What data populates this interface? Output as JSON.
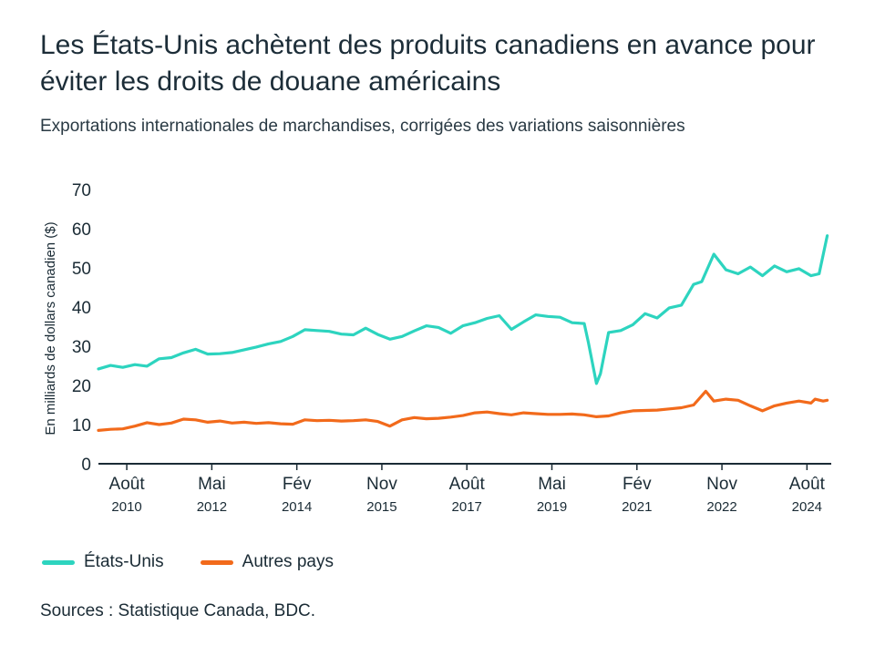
{
  "title": "Les États-Unis achètent des produits canadiens en avance pour éviter les droits de douane américains",
  "subtitle": "Exportations internationales de marchandises, corrigées des variations saisonnières",
  "source": "Sources : Statistique Canada, BDC.",
  "colors": {
    "us": "#2dd4bf",
    "other": "#f26a1b"
  },
  "chart_data": {
    "type": "line",
    "ylabel": "En milliards de dollars canadien ($)",
    "ylim": [
      0,
      70
    ],
    "yticks": [
      0,
      10,
      20,
      30,
      40,
      50,
      60,
      70
    ],
    "xlim": [
      "2010-01",
      "2025-02"
    ],
    "xticks": [
      {
        "month": "Août",
        "year": "2010",
        "date": "2010-08"
      },
      {
        "month": "Mai",
        "year": "2012",
        "date": "2012-05"
      },
      {
        "month": "Fév",
        "year": "2014",
        "date": "2014-02"
      },
      {
        "month": "Nov",
        "year": "2015",
        "date": "2015-11"
      },
      {
        "month": "Août",
        "year": "2017",
        "date": "2017-08"
      },
      {
        "month": "Mai",
        "year": "2019",
        "date": "2019-05"
      },
      {
        "month": "Fév",
        "year": "2021",
        "date": "2021-02"
      },
      {
        "month": "Nov",
        "year": "2022",
        "date": "2022-11"
      },
      {
        "month": "Août",
        "year": "2024",
        "date": "2024-08"
      }
    ],
    "grid": false,
    "legend": "bottom-left",
    "series": [
      {
        "name": "États-Unis",
        "x": [
          "2010-01",
          "2010-04",
          "2010-07",
          "2010-10",
          "2011-01",
          "2011-04",
          "2011-07",
          "2011-10",
          "2012-01",
          "2012-04",
          "2012-07",
          "2012-10",
          "2013-01",
          "2013-04",
          "2013-07",
          "2013-10",
          "2014-01",
          "2014-04",
          "2014-07",
          "2014-10",
          "2015-01",
          "2015-04",
          "2015-07",
          "2015-10",
          "2016-01",
          "2016-04",
          "2016-07",
          "2016-10",
          "2017-01",
          "2017-04",
          "2017-07",
          "2017-10",
          "2018-01",
          "2018-04",
          "2018-07",
          "2018-10",
          "2019-01",
          "2019-04",
          "2019-07",
          "2019-10",
          "2020-01",
          "2020-02",
          "2020-04",
          "2020-05",
          "2020-07",
          "2020-10",
          "2021-01",
          "2021-04",
          "2021-07",
          "2021-10",
          "2022-01",
          "2022-04",
          "2022-06",
          "2022-09",
          "2022-12",
          "2023-03",
          "2023-06",
          "2023-09",
          "2023-12",
          "2024-03",
          "2024-06",
          "2024-09",
          "2024-11",
          "2025-01"
        ],
        "values": [
          24.2,
          25.1,
          24.6,
          25.3,
          24.9,
          26.8,
          27.1,
          28.3,
          29.2,
          28.0,
          28.1,
          28.4,
          29.1,
          29.8,
          30.6,
          31.2,
          32.5,
          34.2,
          34.0,
          33.8,
          33.1,
          32.9,
          34.6,
          33.0,
          31.8,
          32.5,
          33.9,
          35.2,
          34.8,
          33.3,
          35.2,
          36.0,
          37.1,
          37.8,
          34.3,
          36.2,
          38.0,
          37.6,
          37.4,
          36.0,
          35.8,
          31.0,
          20.5,
          23.0,
          33.5,
          34.0,
          35.5,
          38.3,
          37.2,
          39.8,
          40.5,
          45.8,
          46.5,
          53.5,
          49.5,
          48.5,
          50.2,
          48.0,
          50.5,
          49.0,
          49.8,
          48.0,
          48.5,
          58.2
        ]
      },
      {
        "name": "Autres pays",
        "x": [
          "2010-01",
          "2010-04",
          "2010-07",
          "2010-10",
          "2011-01",
          "2011-04",
          "2011-07",
          "2011-10",
          "2012-01",
          "2012-04",
          "2012-07",
          "2012-10",
          "2013-01",
          "2013-04",
          "2013-07",
          "2013-10",
          "2014-01",
          "2014-04",
          "2014-07",
          "2014-10",
          "2015-01",
          "2015-04",
          "2015-07",
          "2015-10",
          "2016-01",
          "2016-04",
          "2016-07",
          "2016-10",
          "2017-01",
          "2017-04",
          "2017-07",
          "2017-10",
          "2018-01",
          "2018-04",
          "2018-07",
          "2018-10",
          "2019-01",
          "2019-04",
          "2019-07",
          "2019-10",
          "2020-01",
          "2020-04",
          "2020-07",
          "2020-10",
          "2021-01",
          "2021-04",
          "2021-07",
          "2021-10",
          "2022-01",
          "2022-04",
          "2022-07",
          "2022-09",
          "2022-12",
          "2023-03",
          "2023-06",
          "2023-09",
          "2023-12",
          "2024-03",
          "2024-06",
          "2024-09",
          "2024-10",
          "2024-12",
          "2025-01"
        ],
        "values": [
          8.5,
          8.8,
          8.9,
          9.6,
          10.5,
          10.0,
          10.4,
          11.4,
          11.2,
          10.6,
          10.9,
          10.4,
          10.6,
          10.3,
          10.5,
          10.2,
          10.1,
          11.2,
          11.0,
          11.1,
          10.9,
          11.0,
          11.2,
          10.8,
          9.6,
          11.2,
          11.8,
          11.5,
          11.6,
          11.9,
          12.3,
          13.0,
          13.2,
          12.8,
          12.5,
          13.0,
          12.8,
          12.6,
          12.6,
          12.7,
          12.5,
          12.0,
          12.2,
          13.0,
          13.5,
          13.6,
          13.7,
          14.0,
          14.3,
          15.0,
          18.5,
          16.0,
          16.5,
          16.2,
          14.8,
          13.5,
          14.8,
          15.5,
          16.0,
          15.5,
          16.5,
          16.0,
          16.2
        ]
      }
    ]
  }
}
